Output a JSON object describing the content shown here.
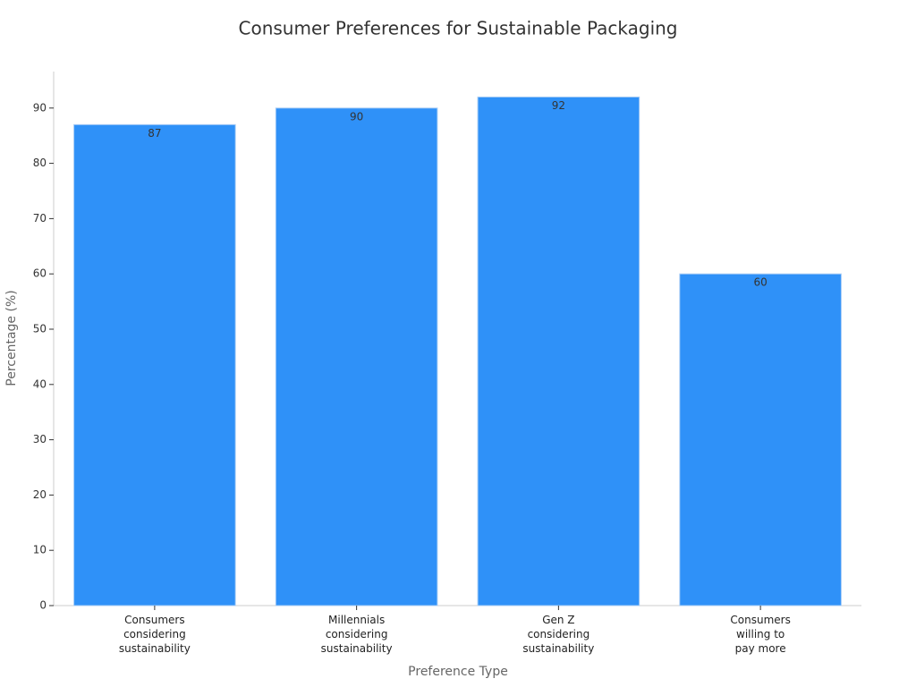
{
  "chart_data": {
    "type": "bar",
    "title": "Consumer Preferences for Sustainable Packaging",
    "x_label": "Preference Type",
    "y_label": "Percentage (%)",
    "categories": [
      "Consumers\nconsidering\nsustainability",
      "Millennials\nconsidering\nsustainability",
      "Gen Z\nconsidering\nsustainability",
      "Consumers\nwilling to\npay more"
    ],
    "values": [
      87,
      90,
      92,
      60
    ],
    "color": "#2f91f8",
    "ylim": [
      0,
      96.6
    ],
    "yticks": [
      0,
      10,
      20,
      30,
      40,
      50,
      60,
      70,
      80,
      90
    ],
    "grid": false
  }
}
